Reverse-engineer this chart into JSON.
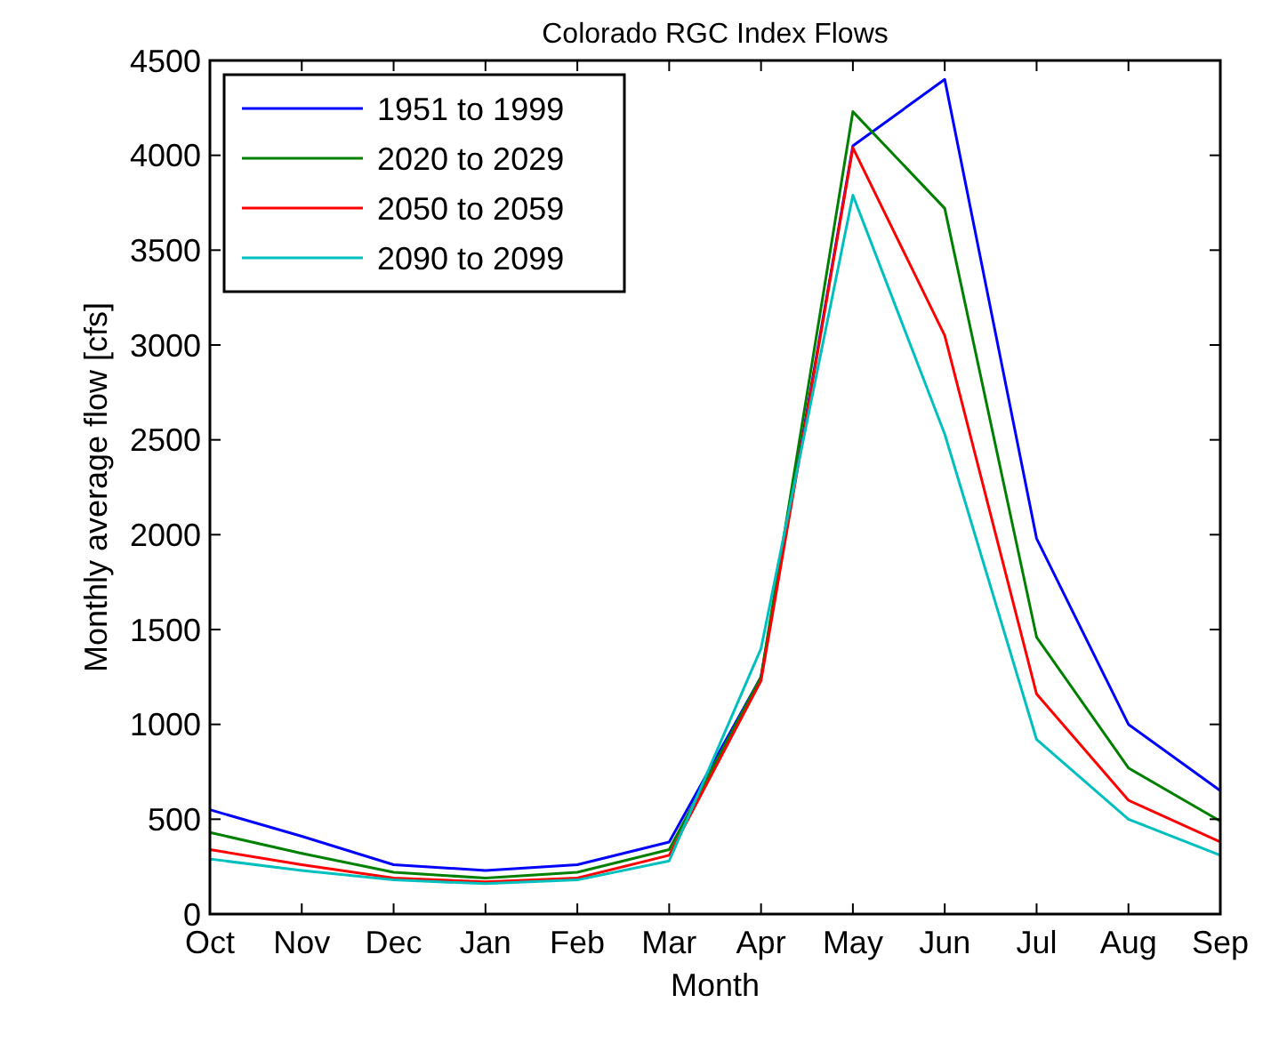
{
  "chart_data": {
    "type": "line",
    "title": "Colorado RGC Index Flows",
    "xlabel": "Month",
    "ylabel": "Monthly average flow [cfs]",
    "categories": [
      "Oct",
      "Nov",
      "Dec",
      "Jan",
      "Feb",
      "Mar",
      "Apr",
      "May",
      "Jun",
      "Jul",
      "Aug",
      "Sep"
    ],
    "series": [
      {
        "name": "1951 to 1999",
        "color": "#0000ff",
        "values": [
          550,
          410,
          260,
          230,
          260,
          380,
          1250,
          4050,
          4400,
          1980,
          1000,
          650
        ]
      },
      {
        "name": "2020 to 2029",
        "color": "#008000",
        "values": [
          430,
          320,
          220,
          190,
          220,
          340,
          1250,
          4230,
          3720,
          1460,
          770,
          490
        ]
      },
      {
        "name": "2050 to 2059",
        "color": "#ff0000",
        "values": [
          340,
          260,
          190,
          170,
          190,
          310,
          1230,
          4040,
          3050,
          1160,
          600,
          380
        ]
      },
      {
        "name": "2090 to 2099",
        "color": "#00bfbf",
        "values": [
          290,
          230,
          180,
          160,
          180,
          280,
          1400,
          3790,
          2530,
          920,
          500,
          310
        ]
      }
    ],
    "ylim": [
      0,
      4500
    ],
    "yticks": [
      0,
      500,
      1000,
      1500,
      2000,
      2500,
      3000,
      3500,
      4000,
      4500
    ],
    "grid": false,
    "legend": "top left",
    "marker": "none",
    "line_style": "solid"
  }
}
